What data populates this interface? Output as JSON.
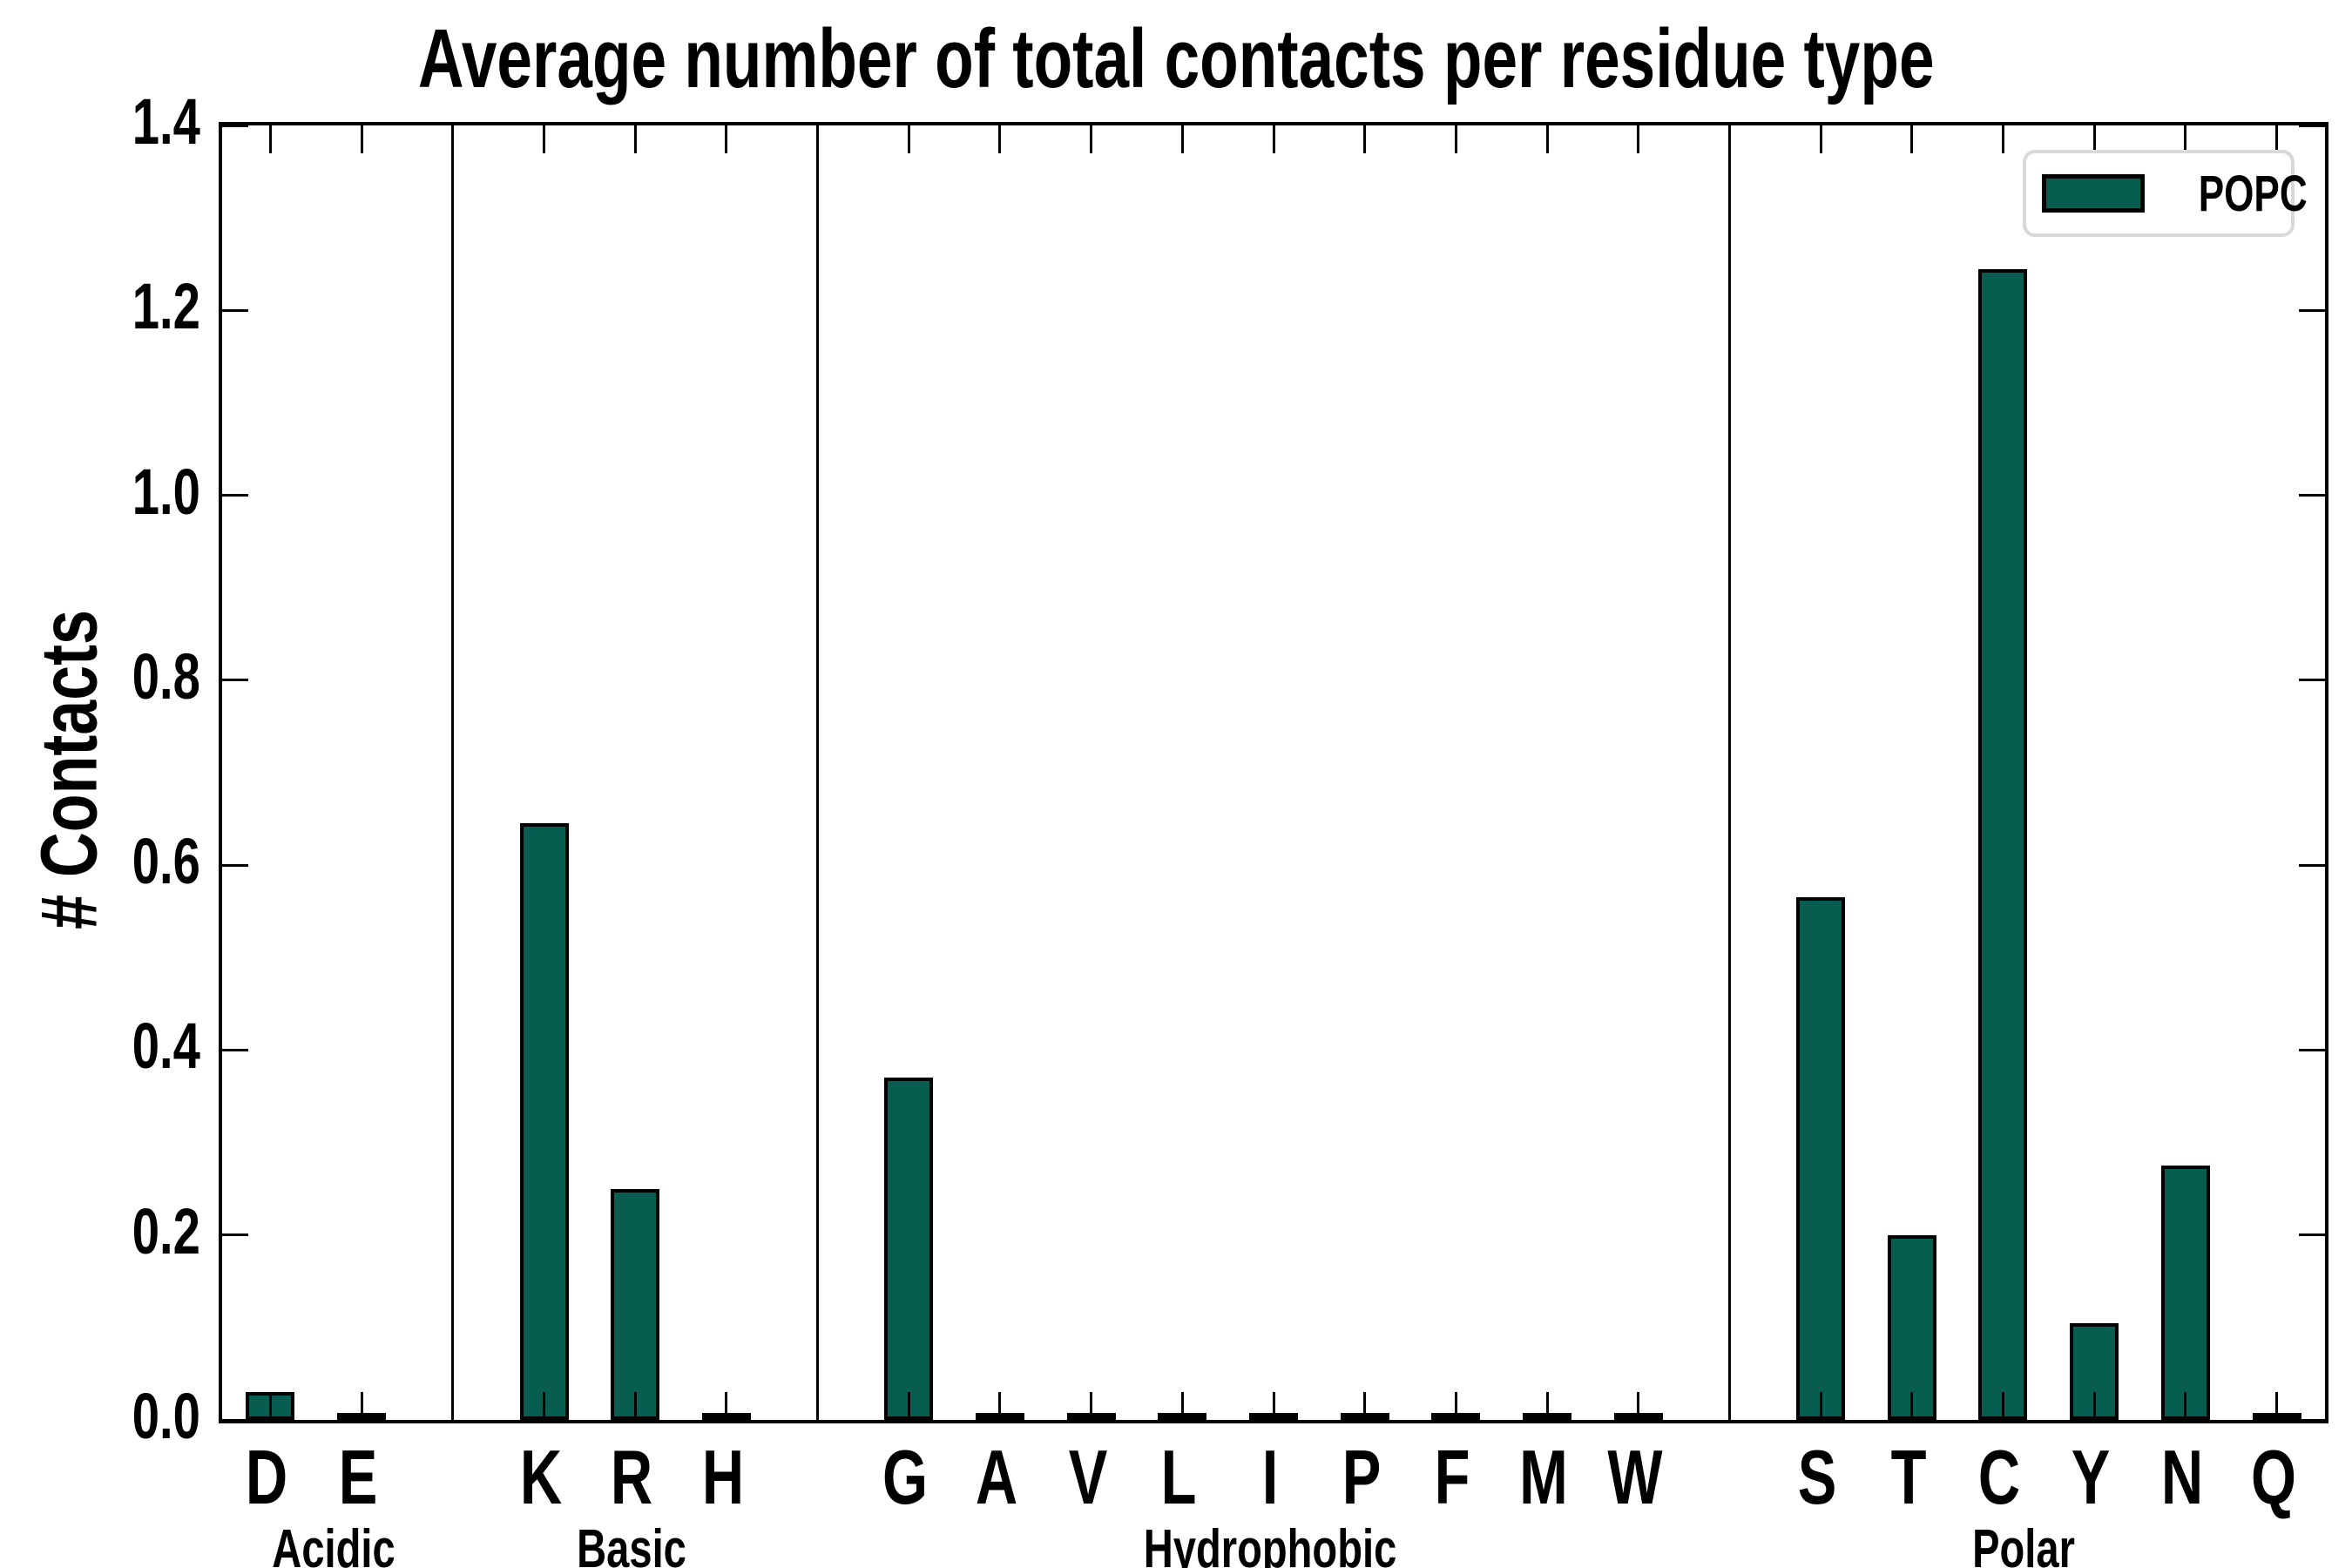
{
  "title": "Average number of total contacts per residue type",
  "y_axis": {
    "label": "# Contacts",
    "tick_labels": [
      "0.0",
      "0.2",
      "0.4",
      "0.6",
      "0.8",
      "1.0",
      "1.2",
      "1.4"
    ],
    "min": 0.0,
    "max": 1.4
  },
  "legend": {
    "label": "POPC",
    "position": "upper right"
  },
  "colors": {
    "bar_fill": "#075e50",
    "bar_edge": "#000000",
    "axis": "#000000",
    "legend_border": "#d8d8d8",
    "background": "#ffffff"
  },
  "chart_data": {
    "type": "bar",
    "title": "Average number of total contacts per residue type",
    "xlabel": "",
    "ylabel": "# Contacts",
    "ylim": [
      0.0,
      1.4
    ],
    "yticks": [
      0.0,
      0.2,
      0.4,
      0.6,
      0.8,
      1.0,
      1.2,
      1.4
    ],
    "grid": false,
    "legend_position": "upper right",
    "series_name": "POPC",
    "groups": [
      {
        "name": "Acidic",
        "categories": [
          "D",
          "E"
        ],
        "values": [
          0.03,
          0.003
        ]
      },
      {
        "name": "Basic",
        "categories": [
          "K",
          "R",
          "H"
        ],
        "values": [
          0.645,
          0.25,
          0.003
        ]
      },
      {
        "name": "Hydrophobic",
        "categories": [
          "G",
          "A",
          "V",
          "L",
          "I",
          "P",
          "F",
          "M",
          "W"
        ],
        "values": [
          0.37,
          0.004,
          0.004,
          0.003,
          0.003,
          0.004,
          0.003,
          0.003,
          0.003
        ]
      },
      {
        "name": "Polar",
        "categories": [
          "S",
          "T",
          "C",
          "Y",
          "N",
          "Q"
        ],
        "values": [
          0.565,
          0.2,
          1.245,
          0.105,
          0.275,
          0.003
        ]
      }
    ]
  }
}
